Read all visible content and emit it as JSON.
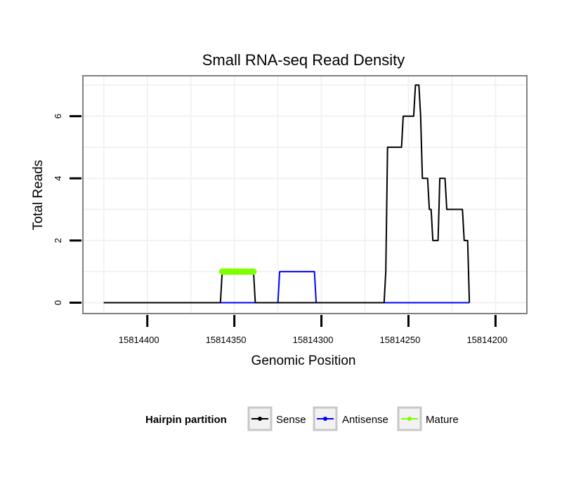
{
  "chart_data": {
    "type": "line",
    "title": "Small RNA-seq Read Density",
    "xlabel": "Genomic Position",
    "ylabel": "Total Reads",
    "xlim": [
      15814437,
      15814182
    ],
    "ylim": [
      -0.35,
      7.3
    ],
    "x_reversed": true,
    "grid": true,
    "x_ticks": [
      15814400,
      15814350,
      15814300,
      15814250,
      15814200
    ],
    "x_tick_labels": [
      "15814400",
      "15814350",
      "15814300",
      "15814250",
      "15814200"
    ],
    "y_ticks": [
      0,
      2,
      4,
      6
    ],
    "y_tick_labels": [
      "0",
      "2",
      "4",
      "6"
    ],
    "legend": {
      "title": "Hairpin partition",
      "placement": "bottom",
      "entries": [
        "Sense",
        "Antisense",
        "Mature"
      ]
    },
    "series": [
      {
        "name": "Sense",
        "color": "#000000",
        "x": [
          15814425,
          15814358,
          15814357,
          15814339,
          15814338,
          15814264,
          15814263,
          15814262,
          15814254,
          15814253,
          15814247,
          15814246,
          15814244,
          15814243,
          15814242,
          15814239,
          15814238,
          15814237,
          15814236,
          15814233,
          15814232,
          15814229,
          15814228,
          15814219,
          15814218,
          15814216,
          15814215
        ],
        "y": [
          0,
          0,
          1,
          1,
          0,
          0,
          1,
          5,
          5,
          6,
          6,
          7,
          7,
          6,
          4,
          4,
          3,
          3,
          2,
          2,
          4,
          4,
          3,
          3,
          2,
          2,
          0
        ]
      },
      {
        "name": "Antisense",
        "color": "#0000ff",
        "x": [
          15814425,
          15814325,
          15814324,
          15814304,
          15814303,
          15814215
        ],
        "y": [
          0,
          0,
          1,
          1,
          0,
          0
        ]
      },
      {
        "name": "Mature",
        "color": "#7fff00",
        "x": [
          15814357,
          15814339
        ],
        "y": [
          1,
          1
        ]
      }
    ]
  }
}
